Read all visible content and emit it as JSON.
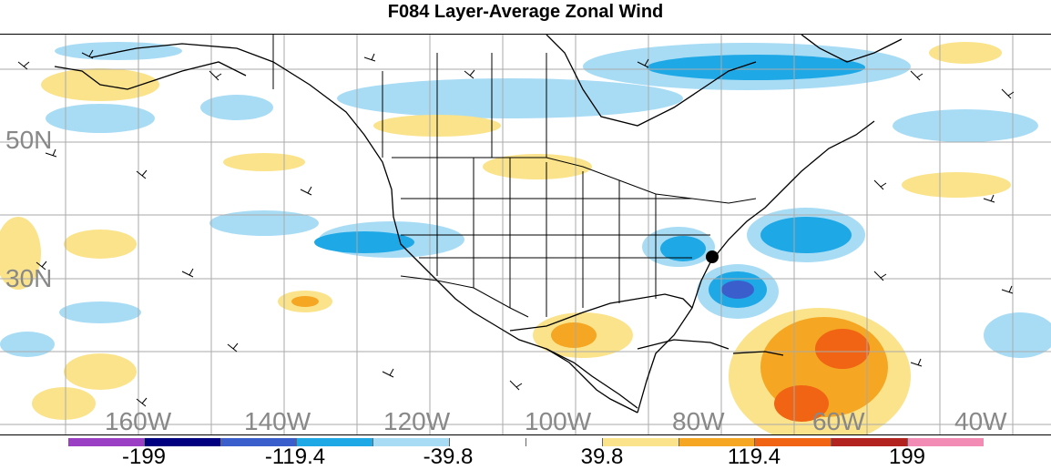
{
  "title": "F084 Layer-Average Zonal Wind",
  "lat_labels": [
    "50N",
    "30N"
  ],
  "lon_labels": [
    "160W",
    "140W",
    "120W",
    "100W",
    "80W",
    "60W",
    "40W"
  ],
  "colorbar": {
    "colors": [
      "#9b3fc4",
      "#000080",
      "#3a5fcd",
      "#1ea8e6",
      "#a8dcf5",
      "#ffffff",
      "#ffffff",
      "#fae38a",
      "#f5a623",
      "#f06414",
      "#b2221e",
      "#f28cb4"
    ],
    "labels": [
      "-199",
      "-119.4",
      "-39.8",
      "39.8",
      "119.4",
      "199"
    ]
  },
  "map": {
    "background": "#ffffff",
    "gridline_color": "#aaaaaa",
    "coastline_color": "#000000",
    "marker": "black-dot"
  }
}
